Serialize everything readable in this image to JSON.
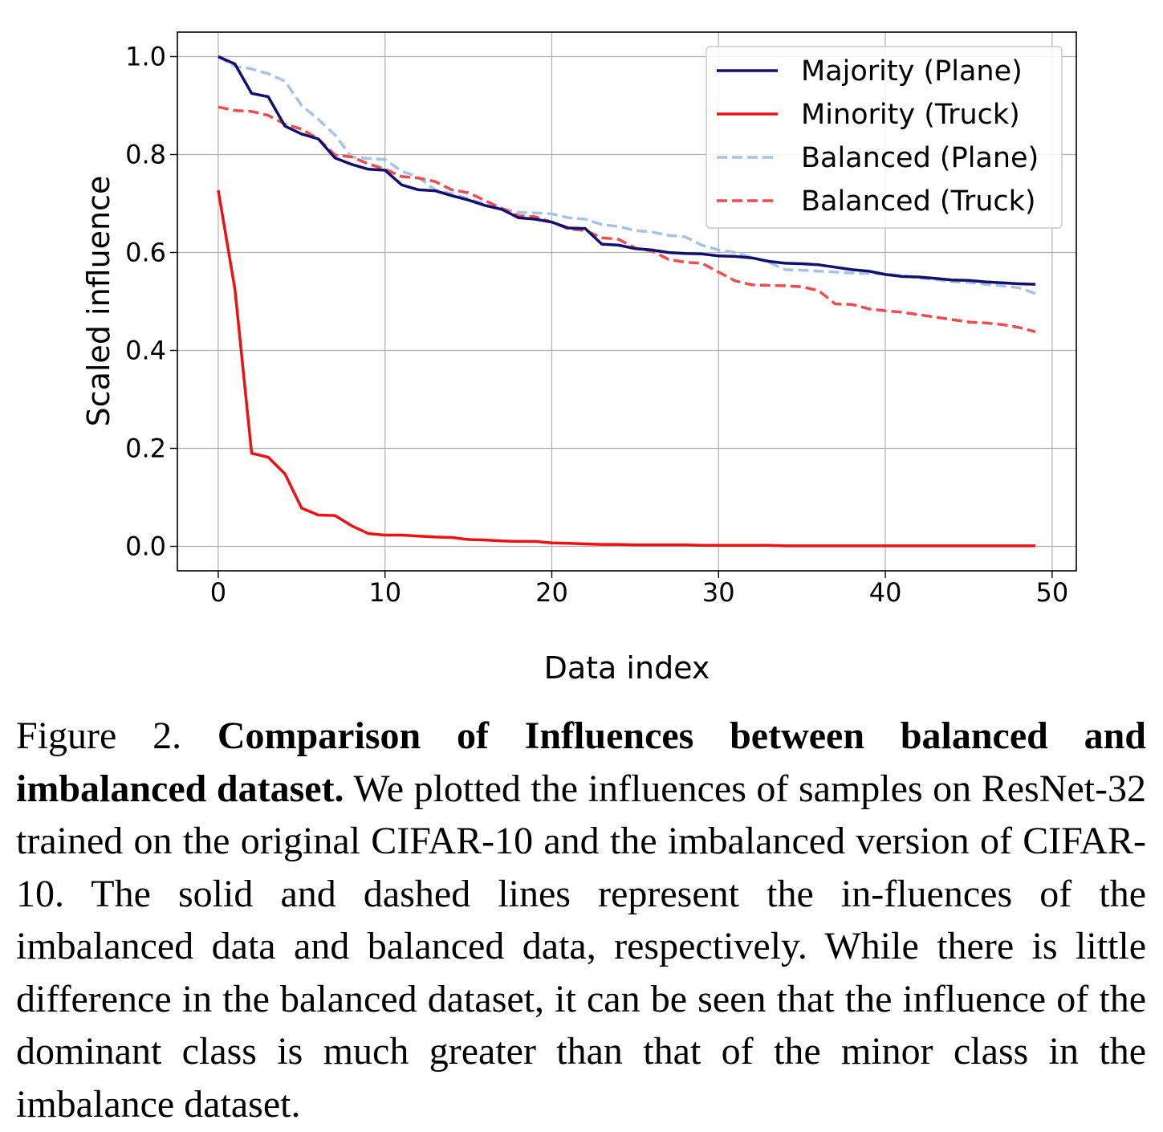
{
  "chart_data": {
    "type": "line",
    "xlabel": "Data index",
    "ylabel": "Scaled influence",
    "xlim": [
      -2.45,
      51.45
    ],
    "ylim": [
      -0.05,
      1.05
    ],
    "xticks": [
      "0",
      "10",
      "20",
      "30",
      "40",
      "50"
    ],
    "yticks": [
      "0.0",
      "0.2",
      "0.4",
      "0.6",
      "0.8",
      "1.0"
    ],
    "grid": true,
    "legend_position": "top-right",
    "x": [
      0,
      1,
      2,
      3,
      4,
      5,
      6,
      7,
      8,
      9,
      10,
      11,
      12,
      13,
      14,
      15,
      16,
      17,
      18,
      19,
      20,
      21,
      22,
      23,
      24,
      25,
      26,
      27,
      28,
      29,
      30,
      31,
      32,
      33,
      34,
      35,
      36,
      37,
      38,
      39,
      40,
      41,
      42,
      43,
      44,
      45,
      46,
      47,
      48,
      49
    ],
    "series": [
      {
        "name": "Majority (Plane)",
        "color": "#12106e",
        "dash": "solid",
        "values": [
          1.0,
          0.985,
          0.925,
          0.918,
          0.858,
          0.842,
          0.832,
          0.793,
          0.78,
          0.77,
          0.768,
          0.738,
          0.728,
          0.726,
          0.716,
          0.707,
          0.696,
          0.688,
          0.671,
          0.668,
          0.662,
          0.65,
          0.649,
          0.617,
          0.615,
          0.608,
          0.605,
          0.6,
          0.598,
          0.597,
          0.593,
          0.592,
          0.589,
          0.582,
          0.578,
          0.577,
          0.575,
          0.57,
          0.565,
          0.562,
          0.555,
          0.551,
          0.55,
          0.547,
          0.544,
          0.543,
          0.54,
          0.538,
          0.536,
          0.535
        ]
      },
      {
        "name": "Minority (Truck)",
        "color": "#ee1111",
        "dash": "solid",
        "values": [
          0.727,
          0.525,
          0.19,
          0.182,
          0.148,
          0.078,
          0.064,
          0.063,
          0.042,
          0.026,
          0.023,
          0.023,
          0.021,
          0.019,
          0.018,
          0.014,
          0.013,
          0.011,
          0.01,
          0.01,
          0.007,
          0.006,
          0.005,
          0.004,
          0.004,
          0.003,
          0.003,
          0.003,
          0.003,
          0.002,
          0.002,
          0.002,
          0.002,
          0.002,
          0.001,
          0.001,
          0.001,
          0.001,
          0.001,
          0.001,
          0.001,
          0.001,
          0.001,
          0.001,
          0.001,
          0.001,
          0.001,
          0.001,
          0.001,
          0.001
        ]
      },
      {
        "name": "Balanced (Plane)",
        "color": "#a4c3e8",
        "dash": "dashed",
        "values": [
          1.0,
          0.98,
          0.975,
          0.965,
          0.95,
          0.9,
          0.872,
          0.84,
          0.795,
          0.792,
          0.79,
          0.766,
          0.754,
          0.728,
          0.72,
          0.71,
          0.698,
          0.69,
          0.682,
          0.681,
          0.679,
          0.671,
          0.668,
          0.657,
          0.653,
          0.645,
          0.642,
          0.635,
          0.632,
          0.615,
          0.605,
          0.6,
          0.59,
          0.58,
          0.565,
          0.564,
          0.562,
          0.56,
          0.558,
          0.557,
          0.556,
          0.553,
          0.548,
          0.545,
          0.54,
          0.539,
          0.535,
          0.532,
          0.528,
          0.516
        ]
      },
      {
        "name": "Balanced (Truck)",
        "color": "#f24b4b",
        "dash": "dashed",
        "values": [
          0.897,
          0.89,
          0.888,
          0.88,
          0.862,
          0.852,
          0.832,
          0.799,
          0.795,
          0.781,
          0.77,
          0.755,
          0.752,
          0.745,
          0.728,
          0.722,
          0.706,
          0.69,
          0.675,
          0.673,
          0.662,
          0.648,
          0.645,
          0.63,
          0.627,
          0.609,
          0.603,
          0.586,
          0.58,
          0.578,
          0.56,
          0.542,
          0.534,
          0.533,
          0.532,
          0.53,
          0.522,
          0.495,
          0.494,
          0.485,
          0.481,
          0.478,
          0.473,
          0.468,
          0.463,
          0.458,
          0.456,
          0.453,
          0.447,
          0.438
        ]
      }
    ]
  },
  "caption": {
    "prefix": "Figure 2. ",
    "bold": "Comparison of Influences between balanced and imbalanced dataset.",
    "body": " We plotted the influences of samples on ResNet-32 trained on the original CIFAR-10 and the imbalanced version of CIFAR-10. The solid and dashed lines represent the in-fluences of the imbalanced data and balanced data, respectively. While there is little difference in the balanced dataset, it can be seen that the influence of the dominant class is much greater than that of the minor class in the imbalance dataset."
  }
}
